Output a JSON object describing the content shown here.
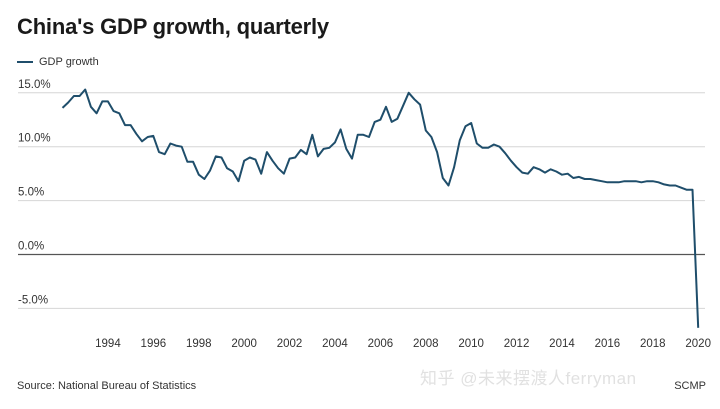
{
  "chart_data": {
    "type": "line",
    "title": "China's GDP growth, quarterly",
    "series": [
      {
        "name": "GDP growth",
        "color": "#1f4e6b",
        "x": [
          1992.0,
          1992.25,
          1992.5,
          1992.75,
          1993.0,
          1993.25,
          1993.5,
          1993.75,
          1994.0,
          1994.25,
          1994.5,
          1994.75,
          1995.0,
          1995.25,
          1995.5,
          1995.75,
          1996.0,
          1996.25,
          1996.5,
          1996.75,
          1997.0,
          1997.25,
          1997.5,
          1997.75,
          1998.0,
          1998.25,
          1998.5,
          1998.75,
          1999.0,
          1999.25,
          1999.5,
          1999.75,
          2000.0,
          2000.25,
          2000.5,
          2000.75,
          2001.0,
          2001.25,
          2001.5,
          2001.75,
          2002.0,
          2002.25,
          2002.5,
          2002.75,
          2003.0,
          2003.25,
          2003.5,
          2003.75,
          2004.0,
          2004.25,
          2004.5,
          2004.75,
          2005.0,
          2005.25,
          2005.5,
          2005.75,
          2006.0,
          2006.25,
          2006.5,
          2006.75,
          2007.0,
          2007.25,
          2007.5,
          2007.75,
          2008.0,
          2008.25,
          2008.5,
          2008.75,
          2009.0,
          2009.25,
          2009.5,
          2009.75,
          2010.0,
          2010.25,
          2010.5,
          2010.75,
          2011.0,
          2011.25,
          2011.5,
          2011.75,
          2012.0,
          2012.25,
          2012.5,
          2012.75,
          2013.0,
          2013.25,
          2013.5,
          2013.75,
          2014.0,
          2014.25,
          2014.5,
          2014.75,
          2015.0,
          2015.25,
          2015.5,
          2015.75,
          2016.0,
          2016.25,
          2016.5,
          2016.75,
          2017.0,
          2017.25,
          2017.5,
          2017.75,
          2018.0,
          2018.25,
          2018.5,
          2018.75,
          2019.0,
          2019.25,
          2019.5,
          2019.75,
          2020.0
        ],
        "values": [
          13.6,
          14.1,
          14.7,
          14.7,
          15.3,
          13.7,
          13.1,
          14.2,
          14.2,
          13.3,
          13.1,
          12.0,
          12.0,
          11.2,
          10.5,
          10.9,
          11.0,
          9.5,
          9.3,
          10.3,
          10.1,
          10.0,
          8.6,
          8.6,
          7.4,
          7.0,
          7.8,
          9.1,
          9.0,
          8.0,
          7.7,
          6.8,
          8.7,
          9.0,
          8.8,
          7.5,
          9.5,
          8.7,
          8.0,
          7.5,
          8.9,
          9.0,
          9.7,
          9.3,
          11.1,
          9.1,
          9.8,
          9.9,
          10.4,
          11.6,
          9.8,
          8.9,
          11.1,
          11.1,
          10.9,
          12.3,
          12.5,
          13.7,
          12.3,
          12.6,
          13.8,
          15.0,
          14.4,
          13.9,
          11.5,
          10.9,
          9.5,
          7.1,
          6.4,
          8.1,
          10.6,
          11.9,
          12.2,
          10.3,
          9.9,
          9.9,
          10.2,
          10.0,
          9.4,
          8.7,
          8.1,
          7.6,
          7.5,
          8.1,
          7.9,
          7.6,
          7.9,
          7.7,
          7.4,
          7.5,
          7.1,
          7.2,
          7.0,
          7.0,
          6.9,
          6.8,
          6.7,
          6.7,
          6.7,
          6.8,
          6.8,
          6.8,
          6.7,
          6.8,
          6.8,
          6.7,
          6.5,
          6.4,
          6.4,
          6.2,
          6.0,
          6.0,
          -6.8
        ]
      }
    ],
    "x_ticks": [
      "1994",
      "1996",
      "1998",
      "2000",
      "2002",
      "2004",
      "2006",
      "2008",
      "2010",
      "2012",
      "2014",
      "2016",
      "2018",
      "2020"
    ],
    "y_ticks": [
      "15.0%",
      "10.0%",
      "5.0%",
      "0.0%",
      "-5.0%"
    ],
    "xlim": [
      1991.8,
      2020.3
    ],
    "ylim": [
      -7.0,
      16.0
    ],
    "grid": true
  },
  "footer": {
    "source": "Source: National Bureau of Statistics",
    "credit": "SCMP",
    "watermark": "知乎 @未来摆渡人ferryman"
  }
}
